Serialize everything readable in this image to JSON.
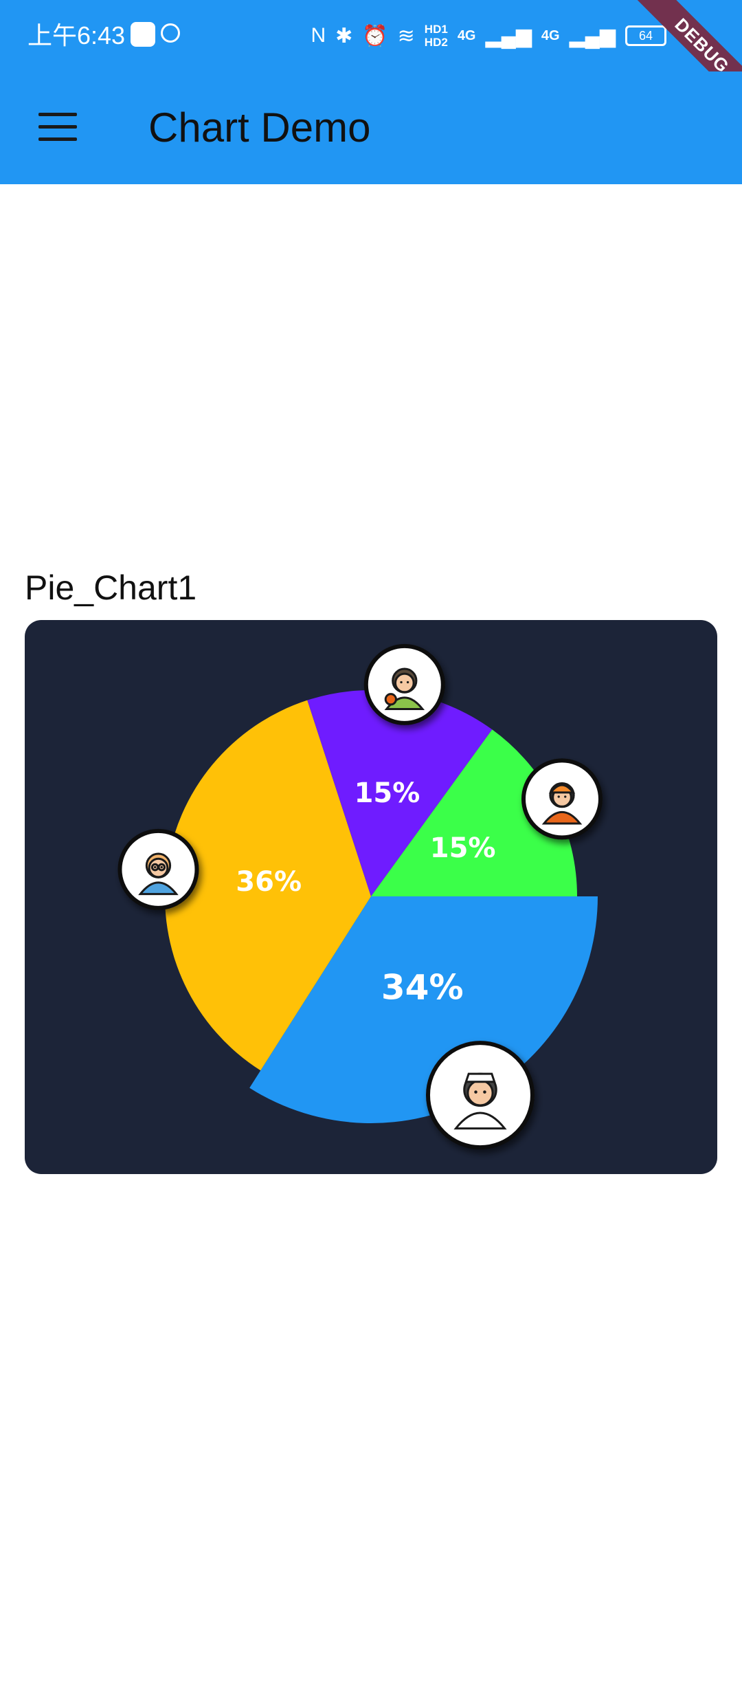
{
  "status_bar": {
    "time": "上午6:43",
    "hd_top": "HD1",
    "hd_bottom": "HD2",
    "network_1": "4G",
    "network_2": "4G",
    "battery": "64",
    "debug_label": "DEBUG"
  },
  "app_bar": {
    "title": "Chart Demo",
    "menu_icon": "menu-icon"
  },
  "colors": {
    "app_bar": "#2196F3",
    "card_background": "#1C2438"
  },
  "chart_data": {
    "type": "pie",
    "title": "Pie_Chart1",
    "slices": [
      {
        "label": "34%",
        "value": 34,
        "color": "#2196F3",
        "icon": "doctor-icon",
        "radius_scale": 1.1
      },
      {
        "label": "36%",
        "value": 36,
        "color": "#FFC107",
        "icon": "teacher-icon",
        "radius_scale": 1.0
      },
      {
        "label": "15%",
        "value": 15,
        "color": "#6F1CFF",
        "icon": "athlete-icon",
        "radius_scale": 1.0
      },
      {
        "label": "15%",
        "value": 15,
        "color": "#3BFF49",
        "icon": "worker-icon",
        "radius_scale": 1.0
      }
    ]
  }
}
